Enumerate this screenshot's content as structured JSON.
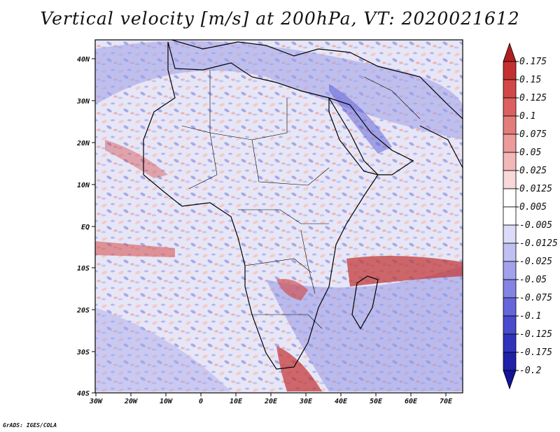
{
  "title": "Vertical velocity [m/s] at 200hPa, VT: 2020021612",
  "footer": "GrADS: IGES/COLA",
  "map": {
    "lat_ticks": [
      "40N",
      "30N",
      "20N",
      "10N",
      "EQ",
      "10S",
      "20S",
      "30S",
      "40S"
    ],
    "lon_ticks": [
      "30W",
      "20W",
      "10W",
      "0",
      "10E",
      "20E",
      "30E",
      "40E",
      "50E",
      "60E",
      "70E"
    ]
  },
  "colorbar": {
    "labels": [
      "0.175",
      "0.15",
      "0.125",
      "0.1",
      "0.075",
      "0.05",
      "0.025",
      "0.0125",
      "0.005",
      "-0.005",
      "-0.0125",
      "-0.025",
      "-0.05",
      "-0.075",
      "-0.1",
      "-0.125",
      "-0.175",
      "-0.2"
    ],
    "colors": [
      "#b01f1f",
      "#c43030",
      "#d24848",
      "#dc6060",
      "#e47c7c",
      "#ec9a9a",
      "#f2b8b8",
      "#f8d8d8",
      "#ffffff",
      "#ffffff",
      "#dcdcf8",
      "#c0c0f2",
      "#a2a2ec",
      "#8484e4",
      "#6666da",
      "#4a4ace",
      "#3232bc",
      "#2020a8",
      "#12129a"
    ]
  }
}
